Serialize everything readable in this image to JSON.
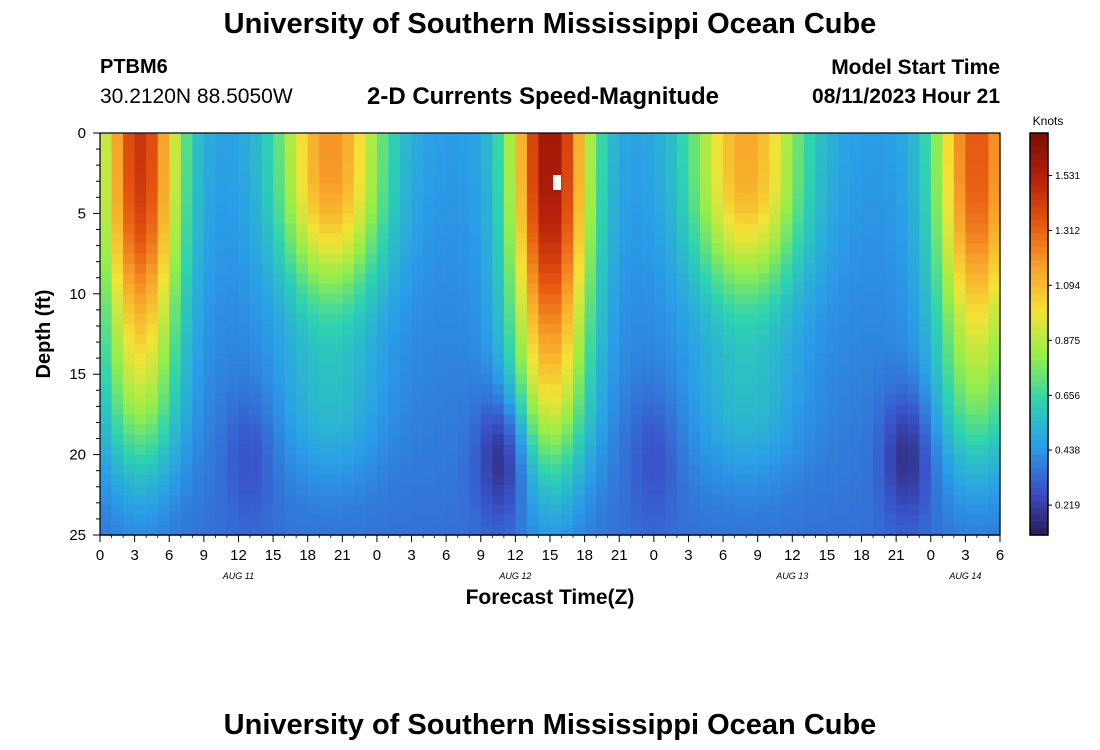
{
  "header": {
    "title": "University of Southern Mississippi Ocean Cube",
    "station": "PTBM6",
    "coords": "30.2120N  88.5050W",
    "subtitle": "2-D Currents Speed-Magnitude",
    "model_start_label": "Model Start Time",
    "model_start_value": "08/11/2023 Hour 21"
  },
  "footer": {
    "title": "University of Southern Mississippi Ocean Cube"
  },
  "colors": {
    "scale": [
      "#2b1a57",
      "#3a52c9",
      "#2a9ee8",
      "#2ed3b0",
      "#95ee4a",
      "#f4e236",
      "#f8a02a",
      "#e55410",
      "#b5200a",
      "#7a0d04"
    ]
  },
  "chart_data": {
    "type": "heatmap",
    "title": "2-D Currents Speed-Magnitude",
    "xlabel": "Forecast Time(Z)",
    "ylabel": "Depth (ft)",
    "colorbar_label": "Knots",
    "colorbar_ticks": [
      "1.531",
      "1.312",
      "1.094",
      "0.875",
      "0.656",
      "0.438",
      "0.219"
    ],
    "colorbar_range": [
      0.1,
      1.7
    ],
    "x_tick_labels": [
      "0",
      "3",
      "6",
      "9",
      "12",
      "15",
      "18",
      "21",
      "0",
      "3",
      "6",
      "9",
      "12",
      "15",
      "18",
      "21",
      "0",
      "3",
      "6",
      "9",
      "12",
      "15",
      "18",
      "21",
      "0",
      "3",
      "6"
    ],
    "date_labels": [
      {
        "label": "AUG 11",
        "hour": 12
      },
      {
        "label": "AUG 12",
        "hour": 36
      },
      {
        "label": "AUG 13",
        "hour": 60
      },
      {
        "label": "AUG 14",
        "hour": 75
      }
    ],
    "xlim": [
      0,
      78
    ],
    "ylim": [
      0,
      25
    ],
    "y_tick_labels": [
      "0",
      "5",
      "10",
      "15",
      "20",
      "25"
    ],
    "n_time_steps": 78,
    "n_depth_levels": 40,
    "ebb_peaks": [
      {
        "hour": 3.5,
        "speed": 1.45,
        "core_depth": 2,
        "reach_depth": 14,
        "width_hours": 3.4
      },
      {
        "hour": 20,
        "speed": 1.2,
        "core_depth": 2,
        "reach_depth": 8.5,
        "width_hours": 4.5
      },
      {
        "hour": 39,
        "speed": 1.6,
        "core_depth": 2,
        "reach_depth": 15,
        "width_hours": 3.4
      },
      {
        "hour": 56,
        "speed": 1.15,
        "core_depth": 2,
        "reach_depth": 8.5,
        "width_hours": 4.8
      },
      {
        "hour": 76,
        "speed": 1.35,
        "core_depth": 2,
        "reach_depth": 13,
        "width_hours": 3.6
      }
    ],
    "slack_minima": [
      {
        "hour": 13,
        "speed": 0.35
      },
      {
        "hour": 35,
        "speed": 0.2
      },
      {
        "hour": 48,
        "speed": 0.35
      },
      {
        "hour": 70,
        "speed": 0.25
      }
    ]
  }
}
